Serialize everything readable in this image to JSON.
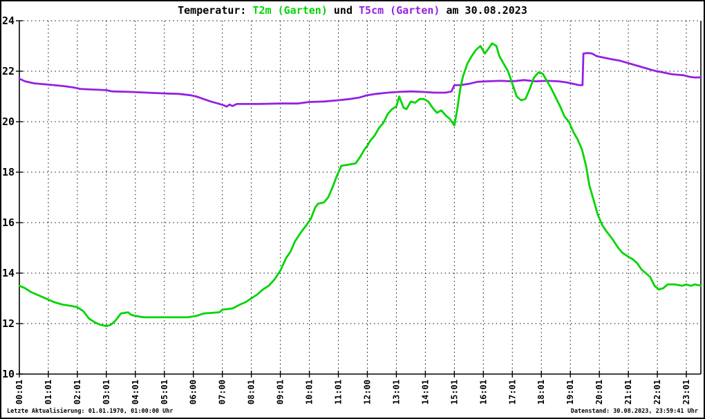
{
  "title": {
    "prefix": "Temperatur: ",
    "series1": "T2m (Garten)",
    "conj": " und ",
    "series2": "T5cm (Garten)",
    "suffix": " am 30.08.2023"
  },
  "footer": {
    "left": "Letzte Aktualisierung: 01.01.1970, 01:00:00 Uhr",
    "right": "Datenstand: 30.08.2023, 23:59:41 Uhr"
  },
  "colors": {
    "t2m": "#00d500",
    "t5cm": "#9420e2",
    "axis": "#000000",
    "grid": "#000000",
    "background": "#ffffff",
    "text": "#000000"
  },
  "chart_data": {
    "type": "line",
    "title": "Temperatur: T2m (Garten) und T5cm (Garten) am 30.08.2023",
    "xlabel": "",
    "ylabel": "",
    "grid": true,
    "legend_position": "in-title",
    "ylim": [
      10,
      24
    ],
    "y_ticks": [
      10,
      12,
      14,
      16,
      18,
      20,
      22,
      24
    ],
    "x_hours_range": [
      0,
      23.5
    ],
    "x_ticks": [
      {
        "hour": 0,
        "label": "00:01"
      },
      {
        "hour": 1,
        "label": "01:01"
      },
      {
        "hour": 2,
        "label": "02:01"
      },
      {
        "hour": 3,
        "label": "03:01"
      },
      {
        "hour": 4,
        "label": "04:01"
      },
      {
        "hour": 5,
        "label": "05:01"
      },
      {
        "hour": 6,
        "label": "06:00"
      },
      {
        "hour": 7,
        "label": "07:00"
      },
      {
        "hour": 8,
        "label": "08:01"
      },
      {
        "hour": 9,
        "label": "09:01"
      },
      {
        "hour": 10,
        "label": "10:01"
      },
      {
        "hour": 11,
        "label": "11:01"
      },
      {
        "hour": 12,
        "label": "12:00"
      },
      {
        "hour": 13,
        "label": "13:01"
      },
      {
        "hour": 14,
        "label": "14:01"
      },
      {
        "hour": 15,
        "label": "15:01"
      },
      {
        "hour": 16,
        "label": "16:01"
      },
      {
        "hour": 17,
        "label": "17:01"
      },
      {
        "hour": 18,
        "label": "18:01"
      },
      {
        "hour": 19,
        "label": "19:01"
      },
      {
        "hour": 20,
        "label": "20:01"
      },
      {
        "hour": 21,
        "label": "21:01"
      },
      {
        "hour": 22,
        "label": "22:01"
      },
      {
        "hour": 23,
        "label": "23:01"
      }
    ],
    "series": [
      {
        "name": "T5cm (Garten)",
        "color": "#9420e2",
        "points": [
          [
            0,
            21.7
          ],
          [
            0.2,
            21.6
          ],
          [
            0.5,
            21.52
          ],
          [
            0.9,
            21.48
          ],
          [
            1.2,
            21.45
          ],
          [
            1.6,
            21.4
          ],
          [
            1.9,
            21.35
          ],
          [
            2.1,
            21.3
          ],
          [
            2.6,
            21.27
          ],
          [
            3.0,
            21.25
          ],
          [
            3.2,
            21.2
          ],
          [
            3.8,
            21.18
          ],
          [
            4.4,
            21.15
          ],
          [
            5.0,
            21.12
          ],
          [
            5.5,
            21.1
          ],
          [
            5.9,
            21.05
          ],
          [
            6.1,
            21.0
          ],
          [
            6.3,
            20.92
          ],
          [
            6.6,
            20.8
          ],
          [
            6.85,
            20.72
          ],
          [
            7.05,
            20.65
          ],
          [
            7.15,
            20.6
          ],
          [
            7.25,
            20.68
          ],
          [
            7.35,
            20.62
          ],
          [
            7.5,
            20.7
          ],
          [
            8.2,
            20.7
          ],
          [
            9.0,
            20.72
          ],
          [
            9.6,
            20.72
          ],
          [
            10.0,
            20.78
          ],
          [
            10.5,
            20.8
          ],
          [
            11.0,
            20.85
          ],
          [
            11.4,
            20.9
          ],
          [
            11.7,
            20.95
          ],
          [
            12.0,
            21.05
          ],
          [
            12.3,
            21.1
          ],
          [
            12.7,
            21.15
          ],
          [
            13.1,
            21.18
          ],
          [
            13.5,
            21.2
          ],
          [
            13.9,
            21.18
          ],
          [
            14.3,
            21.15
          ],
          [
            14.7,
            21.15
          ],
          [
            14.9,
            21.2
          ],
          [
            15.0,
            21.45
          ],
          [
            15.2,
            21.45
          ],
          [
            15.5,
            21.5
          ],
          [
            15.8,
            21.58
          ],
          [
            16.1,
            21.6
          ],
          [
            16.6,
            21.62
          ],
          [
            17.0,
            21.6
          ],
          [
            17.4,
            21.65
          ],
          [
            17.8,
            21.6
          ],
          [
            18.2,
            21.62
          ],
          [
            18.6,
            21.6
          ],
          [
            18.9,
            21.55
          ],
          [
            19.1,
            21.5
          ],
          [
            19.3,
            21.45
          ],
          [
            19.42,
            21.45
          ],
          [
            19.45,
            22.7
          ],
          [
            19.6,
            22.72
          ],
          [
            19.75,
            22.7
          ],
          [
            19.9,
            22.6
          ],
          [
            20.1,
            22.55
          ],
          [
            20.4,
            22.48
          ],
          [
            20.7,
            22.42
          ],
          [
            21.0,
            22.32
          ],
          [
            21.3,
            22.22
          ],
          [
            21.6,
            22.12
          ],
          [
            21.9,
            22.02
          ],
          [
            22.2,
            21.95
          ],
          [
            22.5,
            21.88
          ],
          [
            22.7,
            21.86
          ],
          [
            22.9,
            21.84
          ],
          [
            23.1,
            21.78
          ],
          [
            23.3,
            21.75
          ],
          [
            23.5,
            21.76
          ]
        ]
      },
      {
        "name": "T2m (Garten)",
        "color": "#00d500",
        "points": [
          [
            0,
            13.5
          ],
          [
            0.2,
            13.4
          ],
          [
            0.4,
            13.25
          ],
          [
            0.6,
            13.15
          ],
          [
            0.8,
            13.05
          ],
          [
            1.0,
            12.95
          ],
          [
            1.2,
            12.85
          ],
          [
            1.5,
            12.75
          ],
          [
            1.8,
            12.7
          ],
          [
            2.0,
            12.65
          ],
          [
            2.2,
            12.5
          ],
          [
            2.4,
            12.2
          ],
          [
            2.6,
            12.05
          ],
          [
            2.8,
            11.95
          ],
          [
            3.0,
            11.9
          ],
          [
            3.15,
            11.95
          ],
          [
            3.3,
            12.1
          ],
          [
            3.5,
            12.4
          ],
          [
            3.75,
            12.45
          ],
          [
            3.85,
            12.35
          ],
          [
            4.0,
            12.3
          ],
          [
            4.3,
            12.25
          ],
          [
            5.0,
            12.25
          ],
          [
            5.8,
            12.25
          ],
          [
            6.1,
            12.3
          ],
          [
            6.35,
            12.4
          ],
          [
            6.9,
            12.45
          ],
          [
            7.0,
            12.55
          ],
          [
            7.35,
            12.6
          ],
          [
            7.6,
            12.75
          ],
          [
            7.8,
            12.85
          ],
          [
            8.0,
            13.0
          ],
          [
            8.2,
            13.15
          ],
          [
            8.4,
            13.35
          ],
          [
            8.6,
            13.5
          ],
          [
            8.8,
            13.75
          ],
          [
            9.0,
            14.1
          ],
          [
            9.2,
            14.6
          ],
          [
            9.35,
            14.85
          ],
          [
            9.5,
            15.25
          ],
          [
            9.7,
            15.6
          ],
          [
            9.9,
            15.9
          ],
          [
            10.05,
            16.15
          ],
          [
            10.2,
            16.6
          ],
          [
            10.3,
            16.75
          ],
          [
            10.5,
            16.8
          ],
          [
            10.65,
            17.0
          ],
          [
            10.8,
            17.4
          ],
          [
            10.95,
            17.85
          ],
          [
            11.1,
            18.25
          ],
          [
            11.35,
            18.3
          ],
          [
            11.6,
            18.35
          ],
          [
            11.75,
            18.6
          ],
          [
            11.9,
            18.9
          ],
          [
            12.0,
            19.05
          ],
          [
            12.1,
            19.25
          ],
          [
            12.25,
            19.45
          ],
          [
            12.4,
            19.75
          ],
          [
            12.55,
            19.95
          ],
          [
            12.7,
            20.3
          ],
          [
            12.85,
            20.5
          ],
          [
            13.0,
            20.6
          ],
          [
            13.1,
            21.0
          ],
          [
            13.25,
            20.55
          ],
          [
            13.35,
            20.5
          ],
          [
            13.5,
            20.8
          ],
          [
            13.65,
            20.75
          ],
          [
            13.8,
            20.9
          ],
          [
            13.95,
            20.9
          ],
          [
            14.1,
            20.8
          ],
          [
            14.25,
            20.55
          ],
          [
            14.4,
            20.35
          ],
          [
            14.55,
            20.45
          ],
          [
            14.7,
            20.25
          ],
          [
            14.85,
            20.1
          ],
          [
            15.0,
            19.85
          ],
          [
            15.1,
            20.5
          ],
          [
            15.2,
            21.3
          ],
          [
            15.3,
            21.8
          ],
          [
            15.45,
            22.3
          ],
          [
            15.6,
            22.6
          ],
          [
            15.75,
            22.85
          ],
          [
            15.9,
            23.0
          ],
          [
            16.05,
            22.7
          ],
          [
            16.15,
            22.85
          ],
          [
            16.3,
            23.1
          ],
          [
            16.45,
            23.0
          ],
          [
            16.55,
            22.6
          ],
          [
            16.7,
            22.3
          ],
          [
            16.85,
            22.0
          ],
          [
            17.0,
            21.5
          ],
          [
            17.15,
            21.0
          ],
          [
            17.3,
            20.85
          ],
          [
            17.45,
            20.9
          ],
          [
            17.6,
            21.3
          ],
          [
            17.75,
            21.75
          ],
          [
            17.9,
            21.95
          ],
          [
            18.05,
            21.9
          ],
          [
            18.2,
            21.6
          ],
          [
            18.35,
            21.3
          ],
          [
            18.5,
            20.95
          ],
          [
            18.65,
            20.6
          ],
          [
            18.8,
            20.2
          ],
          [
            18.95,
            20.0
          ],
          [
            19.1,
            19.6
          ],
          [
            19.25,
            19.3
          ],
          [
            19.4,
            18.9
          ],
          [
            19.55,
            18.2
          ],
          [
            19.65,
            17.5
          ],
          [
            19.8,
            16.9
          ],
          [
            19.95,
            16.3
          ],
          [
            20.1,
            15.9
          ],
          [
            20.25,
            15.65
          ],
          [
            20.45,
            15.35
          ],
          [
            20.65,
            15.0
          ],
          [
            20.8,
            14.8
          ],
          [
            21.0,
            14.65
          ],
          [
            21.15,
            14.55
          ],
          [
            21.3,
            14.4
          ],
          [
            21.45,
            14.15
          ],
          [
            21.6,
            14.0
          ],
          [
            21.75,
            13.85
          ],
          [
            21.9,
            13.5
          ],
          [
            22.05,
            13.35
          ],
          [
            22.2,
            13.4
          ],
          [
            22.35,
            13.55
          ],
          [
            22.6,
            13.55
          ],
          [
            22.85,
            13.5
          ],
          [
            23.0,
            13.55
          ],
          [
            23.15,
            13.5
          ],
          [
            23.3,
            13.55
          ],
          [
            23.5,
            13.5
          ]
        ]
      }
    ]
  }
}
